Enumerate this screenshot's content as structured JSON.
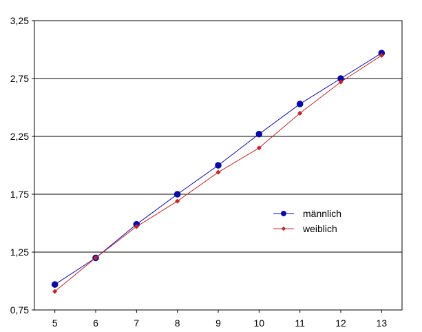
{
  "chart_data": {
    "type": "line",
    "x": [
      5,
      6,
      7,
      8,
      9,
      10,
      11,
      12,
      13
    ],
    "x_tick_labels": [
      "5",
      "6",
      "7",
      "8",
      "9",
      "10",
      "11",
      "12",
      "13"
    ],
    "y_tick_labels": [
      "0,75",
      "1,25",
      "1,75",
      "2,25",
      "2,75",
      "3,25"
    ],
    "y_ticks": [
      0.75,
      1.25,
      1.75,
      2.25,
      2.75,
      3.25
    ],
    "ylim": [
      0.75,
      3.25
    ],
    "xlim": [
      4.5,
      13.5
    ],
    "grid": "horizontal",
    "legend_position": "right-middle",
    "series": [
      {
        "name": "männlich",
        "values": [
          0.97,
          1.2,
          1.49,
          1.75,
          2.0,
          2.27,
          2.53,
          2.75,
          2.97
        ],
        "color": "#0a0aa8",
        "marker": "circle"
      },
      {
        "name": "weiblich",
        "values": [
          0.91,
          1.2,
          1.47,
          1.69,
          1.94,
          2.15,
          2.45,
          2.72,
          2.95
        ],
        "color": "#c0282a",
        "marker": "diamond"
      }
    ]
  }
}
